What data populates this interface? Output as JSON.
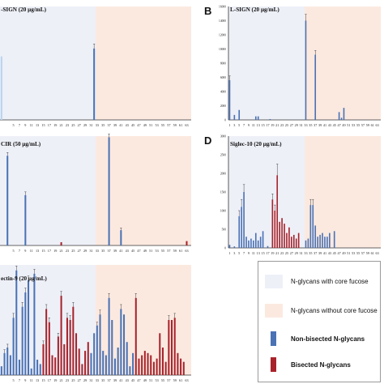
{
  "colors": {
    "core_fucose_bg": "#eef0f8",
    "no_core_fucose_bg": "#fbe9e0",
    "non_bisected": "#4a72b4",
    "bisected": "#a8232b",
    "light_bar": "#b8d4ee"
  },
  "legend": {
    "core_fucose": "N-glycans with core fucose",
    "no_core_fucose": "N-glycans without core fucose",
    "non_bisected": "Non-bisected N-glycans",
    "bisected": "Bisected N-glycans"
  },
  "chart_data": [
    {
      "id": "A",
      "type": "bar",
      "title": "-SIGN (20 μg/mL)",
      "panel_letter": "",
      "ylim": [
        0,
        10
      ],
      "yticks": [],
      "xlabels_every_other_from": 1,
      "xmax": 64,
      "bars": [
        {
          "x": 1,
          "v": 5.6,
          "c": "light"
        },
        {
          "x": 32,
          "v": 6.3,
          "c": "non_bisected",
          "err": 0.4
        }
      ],
      "xtick_labels": [
        "5",
        "7",
        "9",
        "11",
        "13",
        "15",
        "17",
        "19",
        "21",
        "23",
        "25",
        "27",
        "29",
        "31",
        "33",
        "35",
        "37",
        "39",
        "41",
        "43",
        "45",
        "47",
        "49",
        "51",
        "53",
        "55",
        "57",
        "59",
        "61",
        "63"
      ],
      "bisected_x": []
    },
    {
      "id": "B",
      "type": "bar",
      "title": "L-SIGN (20 μg/mL)",
      "panel_letter": "B",
      "ylim": [
        0,
        16000
      ],
      "yticks": [
        "0",
        "2000",
        "4000",
        "6000",
        "8000",
        "10000",
        "12000",
        "14000",
        "16000"
      ],
      "xmax": 64,
      "bars": [
        {
          "x": 1,
          "v": 5600,
          "err": 600
        },
        {
          "x": 3,
          "v": 700
        },
        {
          "x": 5,
          "v": 1400
        },
        {
          "x": 12,
          "v": 500
        },
        {
          "x": 13,
          "v": 500
        },
        {
          "x": 18,
          "v": 120
        },
        {
          "x": 33,
          "v": 14000,
          "err": 900
        },
        {
          "x": 37,
          "v": 9200,
          "err": 600
        },
        {
          "x": 47,
          "v": 1100
        },
        {
          "x": 48,
          "v": 300
        },
        {
          "x": 49,
          "v": 1700
        }
      ],
      "xtick_labels": [
        "1",
        "3",
        "5",
        "7",
        "9",
        "11",
        "13",
        "15",
        "17",
        "19",
        "21",
        "23",
        "25",
        "27",
        "29",
        "31",
        "33",
        "35",
        "37",
        "39",
        "41",
        "43",
        "45",
        "47",
        "49",
        "51",
        "53",
        "55",
        "57",
        "59",
        "61",
        "63"
      ],
      "bisected_x": []
    },
    {
      "id": "C",
      "type": "bar",
      "title": "CIR (50 μg/mL)",
      "panel_letter": "",
      "ylim": [
        0,
        100
      ],
      "yticks": [],
      "xmax": 64,
      "bars": [
        {
          "x": 3,
          "v": 82,
          "err": 3
        },
        {
          "x": 9,
          "v": 46,
          "err": 3
        },
        {
          "x": 21,
          "v": 3
        },
        {
          "x": 37,
          "v": 99,
          "err": 3
        },
        {
          "x": 41,
          "v": 14,
          "err": 2
        },
        {
          "x": 63,
          "v": 4
        }
      ],
      "xtick_labels": [
        "5",
        "7",
        "9",
        "11",
        "13",
        "15",
        "17",
        "19",
        "21",
        "23",
        "25",
        "27",
        "29",
        "31",
        "33",
        "35",
        "37",
        "39",
        "41",
        "43",
        "45",
        "47",
        "49",
        "51",
        "53",
        "55",
        "57",
        "59",
        "61",
        "63"
      ],
      "bisected_x": [
        21,
        63
      ]
    },
    {
      "id": "D",
      "type": "bar",
      "title": "Siglec-10 (20 μg/mL)",
      "panel_letter": "D",
      "ylim": [
        0,
        3000
      ],
      "yticks": [
        "0",
        "500",
        "1000",
        "1500",
        "2000",
        "2500",
        "3000"
      ],
      "xmax": 64,
      "bars": [
        {
          "x": 1,
          "v": 80
        },
        {
          "x": 3,
          "v": 40
        },
        {
          "x": 5,
          "v": 850,
          "err": 150
        },
        {
          "x": 6,
          "v": 1100,
          "err": 200
        },
        {
          "x": 7,
          "v": 1500,
          "err": 200
        },
        {
          "x": 8,
          "v": 300
        },
        {
          "x": 9,
          "v": 200
        },
        {
          "x": 10,
          "v": 250
        },
        {
          "x": 11,
          "v": 200
        },
        {
          "x": 12,
          "v": 400
        },
        {
          "x": 13,
          "v": 200
        },
        {
          "x": 14,
          "v": 300
        },
        {
          "x": 15,
          "v": 450
        },
        {
          "x": 17,
          "v": 50
        },
        {
          "x": 19,
          "v": 1300,
          "err": 150
        },
        {
          "x": 20,
          "v": 1000,
          "err": 150
        },
        {
          "x": 21,
          "v": 1950,
          "err": 300
        },
        {
          "x": 22,
          "v": 700
        },
        {
          "x": 23,
          "v": 800
        },
        {
          "x": 24,
          "v": 650
        },
        {
          "x": 25,
          "v": 400
        },
        {
          "x": 26,
          "v": 550
        },
        {
          "x": 27,
          "v": 300
        },
        {
          "x": 28,
          "v": 350
        },
        {
          "x": 29,
          "v": 250
        },
        {
          "x": 30,
          "v": 400
        },
        {
          "x": 33,
          "v": 200
        },
        {
          "x": 34,
          "v": 250
        },
        {
          "x": 35,
          "v": 1150,
          "err": 150
        },
        {
          "x": 36,
          "v": 1150,
          "err": 150
        },
        {
          "x": 37,
          "v": 600
        },
        {
          "x": 38,
          "v": 300
        },
        {
          "x": 39,
          "v": 350
        },
        {
          "x": 40,
          "v": 400
        },
        {
          "x": 41,
          "v": 300
        },
        {
          "x": 42,
          "v": 300
        },
        {
          "x": 43,
          "v": 400
        },
        {
          "x": 45,
          "v": 450
        }
      ],
      "xtick_labels": [
        "1",
        "3",
        "5",
        "7",
        "9",
        "11",
        "13",
        "15",
        "17",
        "19",
        "21",
        "23",
        "25",
        "27",
        "29",
        "31",
        "33",
        "35",
        "37",
        "39",
        "41",
        "43",
        "45",
        "47",
        "49",
        "51",
        "53",
        "55",
        "57",
        "59",
        "61",
        "63"
      ],
      "bisected_x": [
        19,
        20,
        21,
        22,
        23,
        24,
        25,
        26,
        27,
        28,
        29,
        30
      ]
    },
    {
      "id": "E",
      "type": "bar",
      "title": "ectin-9 (20 μg/mL)",
      "panel_letter": "",
      "ylim": [
        0,
        100
      ],
      "yticks": [],
      "xmax": 64,
      "bars": [
        {
          "x": 1,
          "v": 8
        },
        {
          "x": 2,
          "v": 20,
          "err": 3
        },
        {
          "x": 3,
          "v": 25,
          "err": 3
        },
        {
          "x": 4,
          "v": 18
        },
        {
          "x": 5,
          "v": 52,
          "err": 4
        },
        {
          "x": 6,
          "v": 95,
          "err": 4
        },
        {
          "x": 7,
          "v": 14
        },
        {
          "x": 8,
          "v": 62,
          "err": 4
        },
        {
          "x": 9,
          "v": 75,
          "err": 4
        },
        {
          "x": 10,
          "v": 86,
          "err": 4
        },
        {
          "x": 11,
          "v": 6
        },
        {
          "x": 12,
          "v": 92,
          "err": 4
        },
        {
          "x": 13,
          "v": 14
        },
        {
          "x": 14,
          "v": 10
        },
        {
          "x": 15,
          "v": 28,
          "err": 3
        },
        {
          "x": 16,
          "v": 60,
          "err": 4
        },
        {
          "x": 17,
          "v": 48,
          "err": 4
        },
        {
          "x": 18,
          "v": 18
        },
        {
          "x": 19,
          "v": 16
        },
        {
          "x": 20,
          "v": 35,
          "err": 3
        },
        {
          "x": 21,
          "v": 72,
          "err": 4
        },
        {
          "x": 22,
          "v": 28
        },
        {
          "x": 23,
          "v": 52,
          "err": 4
        },
        {
          "x": 24,
          "v": 50,
          "err": 4
        },
        {
          "x": 25,
          "v": 62,
          "err": 4
        },
        {
          "x": 26,
          "v": 38
        },
        {
          "x": 27,
          "v": 24
        },
        {
          "x": 28,
          "v": 10
        },
        {
          "x": 29,
          "v": 22
        },
        {
          "x": 30,
          "v": 30
        },
        {
          "x": 31,
          "v": 20
        },
        {
          "x": 32,
          "v": 38
        },
        {
          "x": 33,
          "v": 45,
          "err": 3
        },
        {
          "x": 34,
          "v": 55,
          "err": 4
        },
        {
          "x": 35,
          "v": 22
        },
        {
          "x": 36,
          "v": 18
        },
        {
          "x": 37,
          "v": 70,
          "err": 4
        },
        {
          "x": 38,
          "v": 50
        },
        {
          "x": 39,
          "v": 15
        },
        {
          "x": 40,
          "v": 25
        },
        {
          "x": 41,
          "v": 60,
          "err": 4
        },
        {
          "x": 42,
          "v": 55
        },
        {
          "x": 43,
          "v": 30
        },
        {
          "x": 44,
          "v": 8
        },
        {
          "x": 45,
          "v": 20
        },
        {
          "x": 46,
          "v": 70,
          "err": 4
        },
        {
          "x": 47,
          "v": 15
        },
        {
          "x": 48,
          "v": 18
        },
        {
          "x": 49,
          "v": 22
        },
        {
          "x": 50,
          "v": 20
        },
        {
          "x": 51,
          "v": 18
        },
        {
          "x": 52,
          "v": 12
        },
        {
          "x": 53,
          "v": 15
        },
        {
          "x": 54,
          "v": 38
        },
        {
          "x": 55,
          "v": 25
        },
        {
          "x": 56,
          "v": 12
        },
        {
          "x": 57,
          "v": 50,
          "err": 4
        },
        {
          "x": 58,
          "v": 50
        },
        {
          "x": 59,
          "v": 52,
          "err": 4
        },
        {
          "x": 60,
          "v": 20
        },
        {
          "x": 61,
          "v": 15
        },
        {
          "x": 62,
          "v": 12
        }
      ],
      "xtick_labels": [
        "5",
        "7",
        "9",
        "11",
        "13",
        "15",
        "17",
        "19",
        "21",
        "23",
        "25",
        "27",
        "29",
        "31",
        "33",
        "35",
        "37",
        "39",
        "41",
        "43",
        "45",
        "47",
        "49",
        "51",
        "53",
        "55",
        "57",
        "59",
        "61",
        "63"
      ],
      "bisected_x": [
        15,
        16,
        17,
        18,
        19,
        20,
        21,
        22,
        23,
        24,
        25,
        26,
        27,
        28,
        29,
        30,
        46,
        47,
        48,
        49,
        50,
        51,
        52,
        53,
        54,
        55,
        56,
        57,
        58,
        59,
        60,
        61,
        62,
        63,
        64
      ]
    }
  ]
}
